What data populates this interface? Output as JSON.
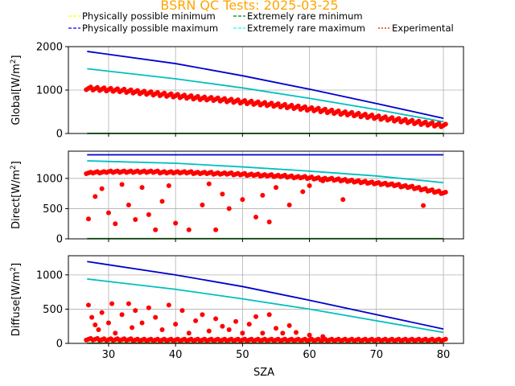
{
  "chart_data": {
    "type": "scatter",
    "title": "BSRN QC Tests: 2025-03-25",
    "title_color": "#ffa500",
    "xlabel": "SZA",
    "xlim": [
      24,
      83
    ],
    "xticks": [
      30,
      40,
      50,
      60,
      70,
      80
    ],
    "grid": true,
    "legend": {
      "placement": "top",
      "entries": [
        {
          "label": "Physically possible minimum",
          "color": "#ffff00",
          "style": "dashed"
        },
        {
          "label": "Physically possible maximum",
          "color": "#0000ff",
          "style": "dashed"
        },
        {
          "label": "Extremely rare minimum",
          "color": "#008000",
          "style": "dashed"
        },
        {
          "label": "Extremely rare maximum",
          "color": "#00ffff",
          "style": "dashed"
        },
        {
          "label": "Experimental",
          "color": "#ff0000",
          "style": "dotted"
        }
      ]
    },
    "panels": [
      {
        "ylabel": "Global[W/m²]",
        "ylabel_main": "Global[W/m",
        "ylabel_sup": "2",
        "ylabel_end": "]",
        "ylim": [
          0,
          2000
        ],
        "yticks": [
          0,
          1000,
          2000
        ],
        "lines": [
          {
            "name": "Physically possible maximum",
            "color": "#0000cc",
            "x": [
              26.8,
              40,
              50,
              60,
              70,
              80
            ],
            "y": [
              1890,
              1610,
              1330,
              1020,
              690,
              350
            ]
          },
          {
            "name": "Extremely rare maximum",
            "color": "#00bfbf",
            "x": [
              26.8,
              40,
              50,
              60,
              70,
              80
            ],
            "y": [
              1490,
              1260,
              1050,
              810,
              550,
              270
            ]
          },
          {
            "name": "Extremely rare minimum",
            "color": "#008000",
            "x": [
              26.8,
              80
            ],
            "y": [
              3,
              3
            ]
          }
        ],
        "points_x": [
          27,
          28,
          29,
          30,
          31,
          32,
          33,
          34,
          35,
          36,
          37,
          38,
          39,
          40,
          41,
          42,
          43,
          44,
          45,
          46,
          47,
          48,
          49,
          50,
          51,
          52,
          53,
          54,
          55,
          56,
          57,
          58,
          59,
          60,
          61,
          62,
          63,
          64,
          65,
          66,
          67,
          68,
          69,
          70,
          71,
          72,
          73,
          74,
          75,
          76,
          77,
          78,
          79,
          80
        ],
        "points_y": [
          1040,
          1030,
          1020,
          1010,
          1000,
          990,
          975,
          960,
          945,
          930,
          915,
          900,
          885,
          870,
          855,
          840,
          825,
          810,
          800,
          790,
          775,
          760,
          745,
          730,
          715,
          700,
          685,
          670,
          655,
          640,
          620,
          605,
          585,
          565,
          550,
          530,
          510,
          490,
          470,
          455,
          435,
          415,
          395,
          375,
          355,
          335,
          315,
          295,
          275,
          255,
          235,
          220,
          200,
          185
        ]
      },
      {
        "ylabel": "Direct[W/m²]",
        "ylabel_main": "Direct[W/m",
        "ylabel_sup": "2",
        "ylabel_end": "]",
        "ylim": [
          0,
          1450
        ],
        "yticks": [
          0,
          500,
          1000
        ],
        "lines": [
          {
            "name": "Physically possible maximum",
            "color": "#0000cc",
            "x": [
              26.8,
              80
            ],
            "y": [
              1390,
              1390
            ]
          },
          {
            "name": "Extremely rare maximum",
            "color": "#00bfbf",
            "x": [
              26.8,
              40,
              50,
              60,
              70,
              80
            ],
            "y": [
              1290,
              1250,
              1190,
              1120,
              1040,
              930
            ]
          },
          {
            "name": "Extremely rare minimum",
            "color": "#008000",
            "x": [
              26.8,
              80
            ],
            "y": [
              3,
              3
            ]
          }
        ],
        "points_x": [
          27,
          28,
          29,
          30,
          31,
          32,
          33,
          34,
          35,
          36,
          37,
          38,
          39,
          40,
          41,
          42,
          43,
          44,
          45,
          46,
          47,
          48,
          49,
          50,
          51,
          52,
          53,
          54,
          55,
          56,
          57,
          58,
          59,
          60,
          61,
          62,
          63,
          64,
          65,
          66,
          67,
          68,
          69,
          70,
          71,
          72,
          73,
          74,
          75,
          76,
          77,
          78,
          79,
          80
        ],
        "points_y": [
          1090,
          1100,
          1100,
          1110,
          1110,
          1110,
          1110,
          1110,
          1110,
          1110,
          1110,
          1100,
          1100,
          1100,
          1100,
          1100,
          1090,
          1090,
          1090,
          1080,
          1080,
          1080,
          1070,
          1070,
          1060,
          1060,
          1050,
          1050,
          1040,
          1040,
          1030,
          1020,
          1020,
          1010,
          1000,
          990,
          990,
          980,
          970,
          960,
          950,
          940,
          930,
          920,
          910,
          900,
          890,
          870,
          860,
          840,
          820,
          800,
          780,
          760
        ],
        "scatter_x": [
          27,
          28,
          29,
          30,
          31,
          32,
          33,
          34,
          35,
          36,
          37,
          38,
          39,
          40,
          42,
          44,
          45,
          46,
          47,
          48,
          50,
          52,
          53,
          54,
          55,
          57,
          59,
          60,
          62,
          65,
          77
        ],
        "scatter_y": [
          330,
          700,
          830,
          430,
          250,
          900,
          560,
          320,
          850,
          400,
          150,
          620,
          880,
          260,
          150,
          560,
          910,
          150,
          740,
          500,
          650,
          360,
          720,
          280,
          850,
          560,
          780,
          880,
          960,
          650,
          550
        ]
      },
      {
        "ylabel": "Diffuse[W/m²]",
        "ylabel_main": "Diffuse[W/m",
        "ylabel_sup": "2",
        "ylabel_end": "]",
        "ylim": [
          0,
          1280
        ],
        "yticks": [
          0,
          500,
          1000
        ],
        "lines": [
          {
            "name": "Physically possible maximum",
            "color": "#0000cc",
            "x": [
              26.8,
              40,
              50,
              60,
              70,
              80
            ],
            "y": [
              1195,
              1000,
              830,
              630,
              420,
              210
            ]
          },
          {
            "name": "Extremely rare maximum",
            "color": "#00bfbf",
            "x": [
              26.8,
              40,
              50,
              60,
              70,
              80
            ],
            "y": [
              940,
              790,
              650,
              500,
              330,
              160
            ]
          },
          {
            "name": "Extremely rare minimum",
            "color": "#008000",
            "x": [
              26.8,
              80
            ],
            "y": [
              3,
              3
            ]
          }
        ],
        "points_x": [
          27,
          28,
          29,
          30,
          31,
          32,
          33,
          34,
          35,
          36,
          37,
          38,
          39,
          40,
          41,
          42,
          43,
          44,
          45,
          46,
          47,
          48,
          49,
          50,
          51,
          52,
          53,
          54,
          55,
          56,
          57,
          58,
          59,
          60,
          61,
          62,
          63,
          64,
          65,
          66,
          67,
          68,
          69,
          70,
          71,
          72,
          73,
          74,
          75,
          76,
          77,
          78,
          79,
          80
        ],
        "points_y": [
          60,
          60,
          55,
          55,
          55,
          55,
          55,
          50,
          50,
          50,
          50,
          50,
          50,
          50,
          50,
          50,
          50,
          50,
          50,
          50,
          50,
          50,
          50,
          50,
          50,
          50,
          50,
          50,
          50,
          50,
          50,
          50,
          50,
          50,
          50,
          50,
          50,
          50,
          50,
          50,
          50,
          50,
          50,
          50,
          50,
          50,
          50,
          50,
          50,
          50,
          50,
          50,
          50,
          50
        ],
        "scatter_x": [
          27,
          27.5,
          28,
          28.5,
          29,
          30,
          30.5,
          31,
          32,
          33,
          33.5,
          34,
          35,
          36,
          37,
          38,
          39,
          40,
          41,
          42,
          43,
          44,
          45,
          46,
          47,
          48,
          49,
          50,
          51,
          52,
          53,
          54,
          55,
          56,
          57,
          58,
          60,
          62
        ],
        "scatter_y": [
          560,
          380,
          270,
          200,
          450,
          300,
          580,
          150,
          420,
          580,
          230,
          480,
          300,
          520,
          380,
          200,
          560,
          280,
          480,
          150,
          330,
          420,
          180,
          360,
          250,
          200,
          320,
          150,
          280,
          390,
          150,
          420,
          220,
          150,
          260,
          160,
          120,
          100
        ]
      }
    ]
  }
}
